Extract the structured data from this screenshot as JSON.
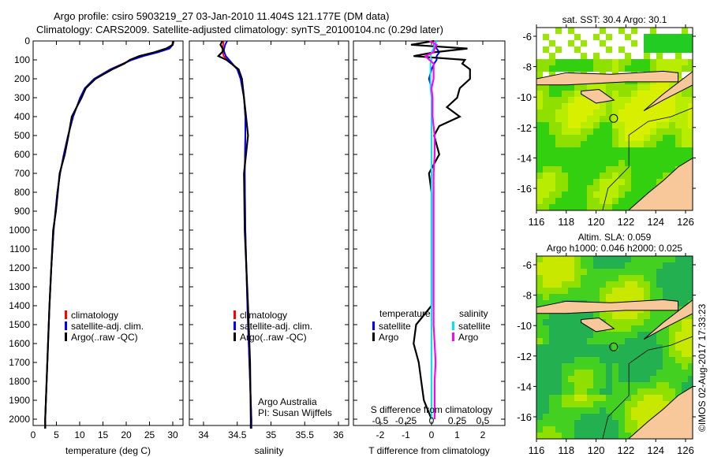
{
  "title": {
    "line1": "Argo profile: csiro 5903219_27 03-Jan-2010 11.404S 121.177E (DM data)",
    "line2": "Climatology: CARS2009. Satellite-adjusted climatology: synTS_20100104.nc (0.29d later)"
  },
  "credit": "©IMOS 02-Aug-2017 17:33:23",
  "colors": {
    "climatology": "#ff0000",
    "satellite": "#0000ff",
    "argo": "#000000",
    "sal_satellite": "#00e5ee",
    "sal_argo": "#ff00ff",
    "land": "#f8c89a"
  },
  "chart_data": [
    {
      "type": "line",
      "name": "temperature-profile",
      "xlabel": "temperature (deg C)",
      "ylabel": "",
      "xlim": [
        -1,
        31
      ],
      "ylim": [
        2050,
        0
      ],
      "xticks": [
        "0",
        "5",
        "10",
        "15",
        "20",
        "25",
        "30"
      ],
      "yticks": [
        "0",
        "100",
        "200",
        "300",
        "400",
        "500",
        "600",
        "700",
        "800",
        "900",
        "1000",
        "1100",
        "1200",
        "1300",
        "1400",
        "1500",
        "1600",
        "1700",
        "1800",
        "1900",
        "2000"
      ],
      "legend": [
        "climatology",
        "satellite-adj. clim.",
        "Argo(..raw -QC)"
      ],
      "depth": [
        0,
        20,
        40,
        60,
        80,
        100,
        120,
        150,
        200,
        250,
        300,
        400,
        500,
        600,
        700,
        800,
        900,
        1000,
        1200,
        1400,
        1600,
        1800,
        2000,
        2050
      ],
      "series": [
        {
          "name": "climatology",
          "values": [
            30,
            29.9,
            29,
            26.5,
            23.5,
            21,
            19.3,
            16.6,
            13.2,
            11.2,
            10.1,
            8.6,
            7.5,
            6.6,
            5.8,
            5.2,
            4.8,
            4.4,
            3.9,
            3.5,
            3.2,
            2.9,
            2.6,
            2.6
          ]
        },
        {
          "name": "satellite-adj. clim.",
          "values": [
            30.2,
            30,
            29.3,
            26.8,
            23.7,
            21.2,
            19.4,
            16.6,
            13.1,
            11.1,
            10.1,
            8.6,
            7.5,
            6.6,
            5.8,
            5.2,
            4.8,
            4.4,
            3.9,
            3.5,
            3.2,
            2.9,
            2.6,
            2.6
          ]
        },
        {
          "name": "Argo(..raw -QC)",
          "values": [
            30.1,
            30,
            28.6,
            26,
            22.8,
            20.8,
            19.6,
            17,
            13.4,
            11.3,
            10.4,
            8.3,
            7.6,
            6.8,
            5.7,
            5.3,
            4.9,
            4.3,
            3.9,
            3.5,
            3.2,
            2.9,
            2.6,
            2.6
          ]
        }
      ]
    },
    {
      "type": "line",
      "name": "salinity-profile",
      "xlabel": "salinity",
      "xlim": [
        33.8,
        36.1
      ],
      "ylim": [
        2050,
        0
      ],
      "xticks": [
        "34",
        "34.5",
        "35",
        "35.5",
        "36"
      ],
      "legend": [
        "climatology",
        "satellite-adj. clim.",
        "Argo(..raw -QC)"
      ],
      "annotation": [
        "Argo Australia",
        "PI: Susan Wijffels"
      ],
      "depth": [
        0,
        20,
        50,
        80,
        100,
        150,
        200,
        300,
        400,
        500,
        700,
        1000,
        1400,
        1700,
        2000,
        2050
      ],
      "series": [
        {
          "name": "climatology",
          "values": [
            34.3,
            34.29,
            34.28,
            34.3,
            34.36,
            34.5,
            34.55,
            34.6,
            34.62,
            34.62,
            34.61,
            34.62,
            34.65,
            34.68,
            34.71,
            34.71
          ]
        },
        {
          "name": "satellite-adj. clim.",
          "values": [
            34.35,
            34.32,
            34.3,
            34.33,
            34.38,
            34.5,
            34.55,
            34.6,
            34.62,
            34.62,
            34.61,
            34.62,
            34.65,
            34.68,
            34.71,
            34.71
          ]
        },
        {
          "name": "Argo(..raw -QC)",
          "values": [
            34.28,
            34.25,
            34.3,
            34.22,
            34.34,
            34.52,
            34.57,
            34.6,
            34.63,
            34.66,
            34.6,
            34.61,
            34.66,
            34.69,
            34.7,
            34.7
          ]
        }
      ]
    },
    {
      "type": "line",
      "name": "difference-profile",
      "xlabel": "T difference from climatology",
      "xlabel2": "S difference from climatology",
      "xlim": [
        -3,
        3
      ],
      "ylim": [
        2050,
        0
      ],
      "xticks": [
        "-2",
        "-1",
        "0",
        "1",
        "2"
      ],
      "xticks2": [
        "-0.5",
        "-0.25",
        "0",
        "0.25",
        "0.5"
      ],
      "legend_groups": [
        "temperature",
        "salinity"
      ],
      "legend": [
        "satellite",
        "Argo",
        "satellite",
        "Argo"
      ],
      "depth": [
        0,
        20,
        40,
        60,
        80,
        100,
        120,
        150,
        200,
        250,
        300,
        350,
        400,
        450,
        500,
        600,
        700,
        800,
        1000,
        1200,
        1400,
        1500,
        1600,
        1700,
        1800,
        1900,
        2000
      ],
      "series": [
        {
          "name": "T satellite",
          "values": [
            0.2,
            0.1,
            0.2,
            0.3,
            0.2,
            0.2,
            0.1,
            0,
            -0.1,
            0,
            0,
            0,
            0,
            0,
            0,
            0,
            0,
            0,
            0,
            0,
            0,
            0,
            0,
            0,
            0,
            0,
            0
          ]
        },
        {
          "name": "T Argo",
          "values": [
            0.1,
            -0.8,
            1.4,
            0.1,
            -0.7,
            1.3,
            1.2,
            1.5,
            1.5,
            1.1,
            1.0,
            0.6,
            1.1,
            0.3,
            0.1,
            0.3,
            -0.1,
            0,
            0,
            0,
            0,
            -0.6,
            -0.7,
            -0.5,
            -0.4,
            -0.3,
            0
          ]
        },
        {
          "name": "S satellite",
          "values": [
            0.05,
            0.03,
            0.02,
            0,
            -0.01,
            0,
            -0.01,
            -0.01,
            -0.01,
            -0.01,
            0,
            0,
            0,
            0,
            0,
            0,
            0,
            0,
            0,
            0,
            0,
            0,
            0,
            0,
            0,
            0,
            0
          ]
        },
        {
          "name": "S Argo",
          "values": [
            -0.02,
            0.05,
            0.03,
            0.02,
            -0.06,
            -0.02,
            0.02,
            0.02,
            0.02,
            0,
            0.01,
            0.01,
            0.01,
            0.02,
            0.03,
            0.03,
            0.02,
            0.02,
            0.02,
            0.02,
            0.02,
            0.02,
            0.03,
            0.04,
            0.03,
            0.03,
            0.03
          ]
        }
      ]
    },
    {
      "type": "heatmap",
      "name": "sst-map",
      "title": "sat. SST: 30.4 Argo: 30.1",
      "xticks": [
        "116",
        "118",
        "120",
        "122",
        "124",
        "126"
      ],
      "yticks": [
        "-6",
        "-8",
        "-10",
        "-12",
        "-14",
        "-16"
      ],
      "marker": {
        "lon": 121.177,
        "lat": -11.404
      }
    },
    {
      "type": "heatmap",
      "name": "sla-map",
      "title1": "Altim. SLA: 0.059",
      "title2": "Argo h1000: 0.046 h2000: 0.025",
      "xticks": [
        "116",
        "118",
        "120",
        "122",
        "124",
        "126"
      ],
      "yticks": [
        "-6",
        "-8",
        "-10",
        "-12",
        "-14",
        "-16"
      ],
      "marker": {
        "lon": 121.177,
        "lat": -11.404
      }
    }
  ]
}
